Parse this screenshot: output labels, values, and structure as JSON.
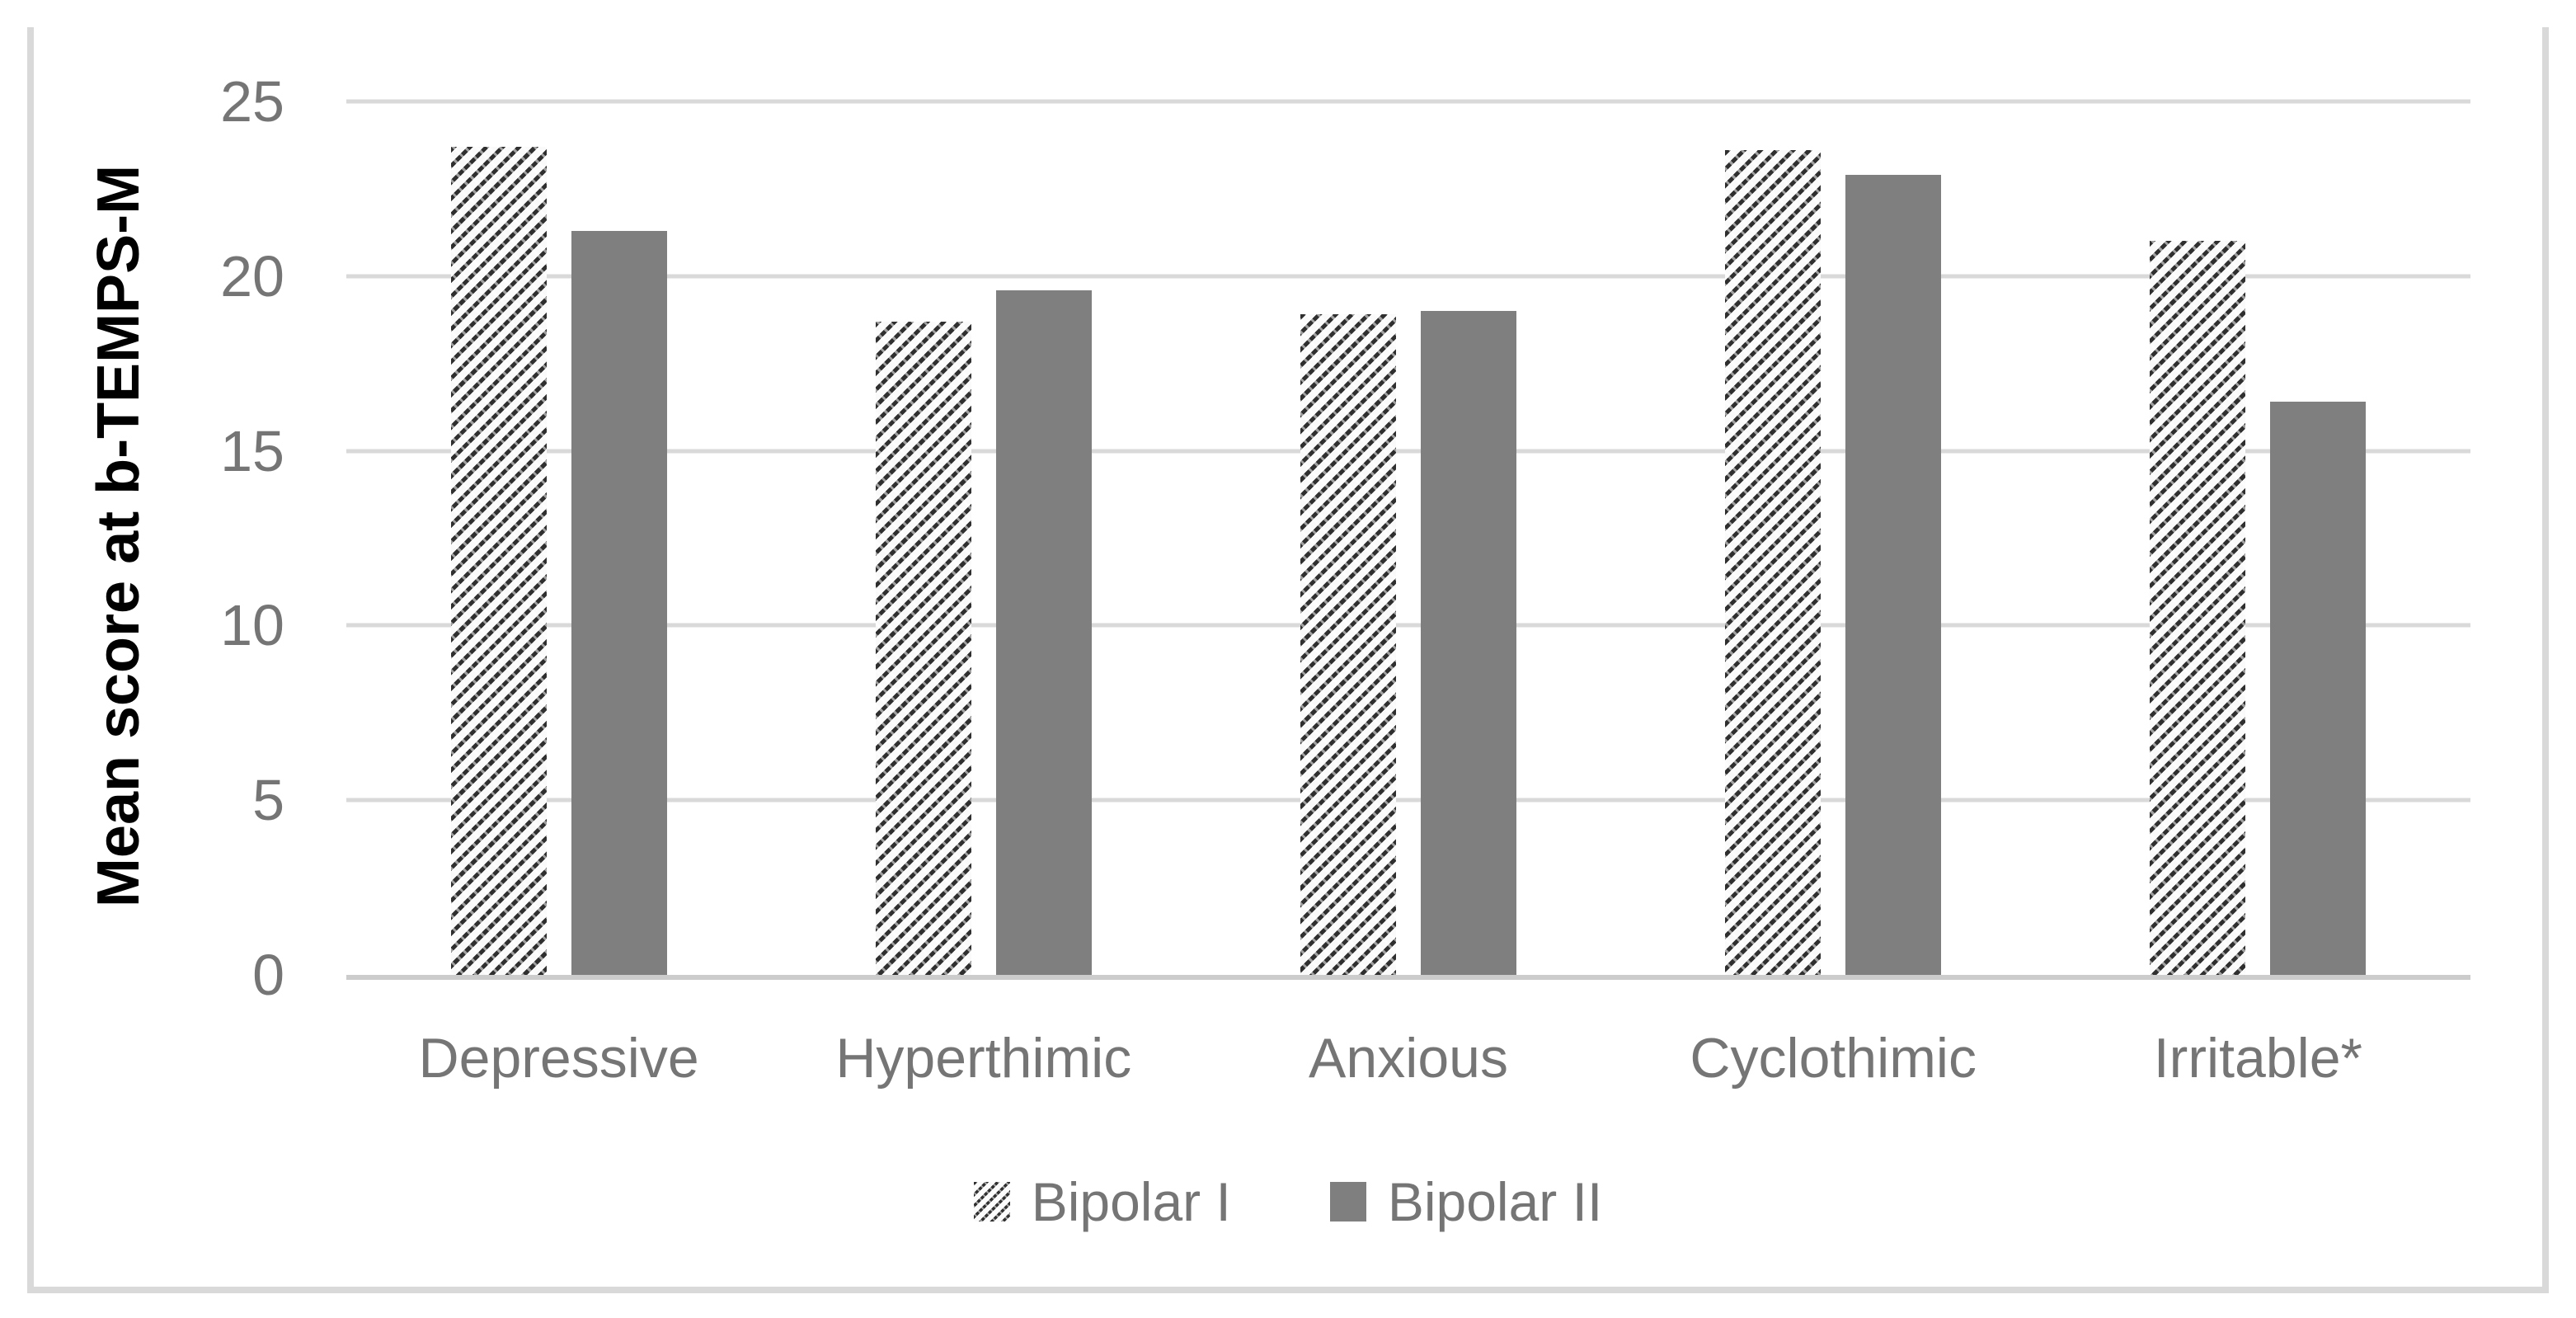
{
  "figure": {
    "background": "#ffffff",
    "frame_color": "#d9d9d9"
  },
  "chart_data": {
    "type": "bar",
    "title": "",
    "xlabel": "",
    "ylabel": "Mean score at b-TEMPS-M",
    "categories": [
      "Depressive",
      "Hyperthimic",
      "Anxious",
      "Cyclothimic",
      "Irritable*"
    ],
    "series": [
      {
        "name": "Bipolar I",
        "pattern": "diagonal-hatch",
        "values": [
          23.7,
          18.7,
          18.9,
          23.6,
          21.0
        ]
      },
      {
        "name": "Bipolar II",
        "pattern": "solid",
        "color": "#7f7f7f",
        "values": [
          21.3,
          19.6,
          19.0,
          22.9,
          16.4
        ]
      }
    ],
    "ylim": [
      0,
      25
    ],
    "yticks": [
      0,
      5,
      10,
      15,
      20,
      25
    ],
    "grid": true,
    "legend_position": "bottom",
    "colors": {
      "gridline": "#d9d9d9",
      "axis_line": "#cccccc",
      "tick_and_label_text": "#757575",
      "solid_bar": "#7f7f7f",
      "hatch_foreground": "#2f2f2f",
      "hatch_background": "#fafafa"
    }
  }
}
